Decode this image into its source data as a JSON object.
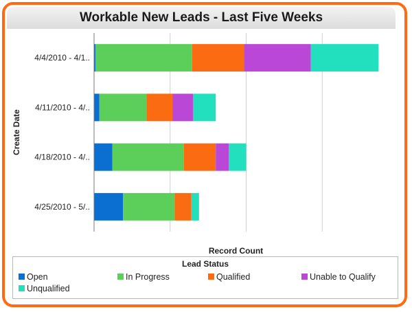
{
  "chart_data": {
    "type": "bar",
    "orientation": "horizontal",
    "stacked": true,
    "title": "Workable New Leads - Last Five Weeks",
    "xlabel": "Record Count",
    "ylabel": "Create Date",
    "categories": [
      "4/4/2010 - 4/1..",
      "4/11/2010 - 4/..",
      "4/18/2010 - 4/..",
      "4/25/2010 - 5/.."
    ],
    "xlim": [
      0,
      40
    ],
    "grid": true,
    "legend": {
      "title": "Lead Status",
      "position": "bottom"
    },
    "series": [
      {
        "name": "Open",
        "color": "#0a6fd1",
        "values": [
          0.2,
          0.7,
          2.4,
          3.8
        ]
      },
      {
        "name": "In Progress",
        "color": "#5ccf5a",
        "values": [
          12.7,
          6.2,
          9.4,
          6.8
        ]
      },
      {
        "name": "Qualified",
        "color": "#fb6b11",
        "values": [
          6.8,
          3.4,
          4.2,
          2.2
        ]
      },
      {
        "name": "Unable to Qualify",
        "color": "#bb47d6",
        "values": [
          8.8,
          2.7,
          1.7,
          0
        ]
      },
      {
        "name": "Unqualified",
        "color": "#22e0be",
        "values": [
          8.9,
          3.0,
          2.3,
          1.0
        ]
      }
    ]
  }
}
